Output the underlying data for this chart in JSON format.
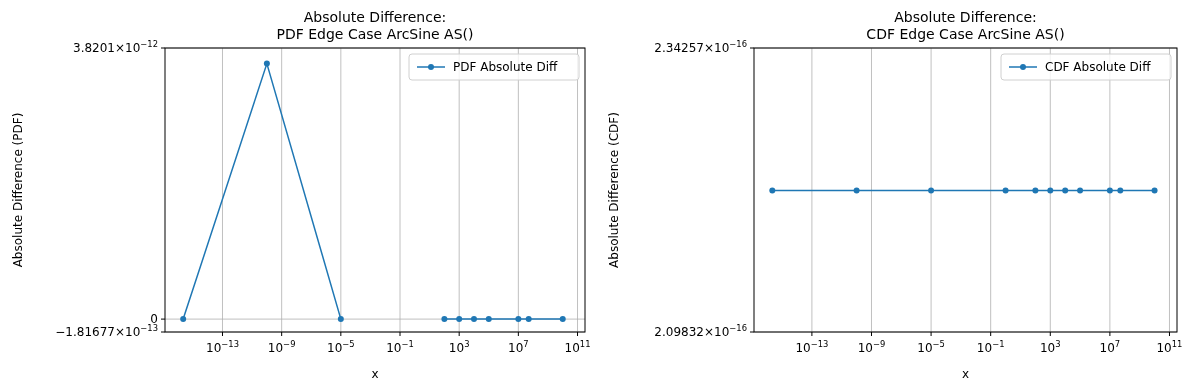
{
  "chart_data": [
    {
      "type": "line",
      "title": "Absolute Difference:\nPDF Edge Case ArcSine AS()",
      "xlabel": "x",
      "ylabel": "Absolute Difference (PDF)",
      "log": "x",
      "grid": true,
      "legend": "top right",
      "marker": "circle",
      "line_style": "solid",
      "x": [
        2.2e-16,
        1e-10,
        1e-05,
        1,
        100,
        1000,
        10000,
        100000,
        10000000,
        50000000,
        10000000000
      ],
      "xlim": [
        1.3e-17,
        320000000000.0
      ],
      "xticks": [
        {
          "value": 1e-13,
          "label": "10$^{−13}$"
        },
        {
          "value": 1e-09,
          "label": "10$^{−9}$"
        },
        {
          "value": 1e-05,
          "label": "10$^{−5}$"
        },
        {
          "value": 0.1,
          "label": "10$^{−1}$"
        },
        {
          "value": 1000,
          "label": "10$^{3}$"
        },
        {
          "value": 10000000,
          "label": "10$^{7}$"
        },
        {
          "value": 100000000000,
          "label": "10$^{11}$"
        }
      ],
      "ylim": [
        -1.81677e-13,
        3.8201e-12
      ],
      "yticks": [
        {
          "value": -1.81677e-13,
          "label": "−1.81677×10$^{−13}$"
        },
        0,
        {
          "value": 3.8201e-12,
          "label": "3.8201×10$^{−12}$"
        }
      ],
      "series": [
        {
          "name": "PDF Absolute Diff",
          "color": "#1f77b4",
          "values": [
            0,
            3.6e-12,
            0,
            null,
            0,
            0,
            0,
            0,
            0,
            0,
            0
          ]
        }
      ]
    },
    {
      "type": "line",
      "title": "Absolute Difference:\nCDF Edge Case ArcSine AS()",
      "xlabel": "x",
      "ylabel": "Absolute Difference (CDF)",
      "log": "x",
      "grid": true,
      "legend": "top right",
      "marker": "circle",
      "line_style": "solid",
      "x": [
        2.2e-16,
        1e-10,
        1e-05,
        1,
        100,
        1000,
        10000,
        100000,
        10000000,
        50000000,
        10000000000
      ],
      "xlim": [
        1.3e-17,
        320000000000.0
      ],
      "xticks": [
        {
          "value": 1e-13,
          "label": "10$^{−13}$"
        },
        {
          "value": 1e-09,
          "label": "10$^{−9}$"
        },
        {
          "value": 1e-05,
          "label": "10$^{−5}$"
        },
        {
          "value": 0.1,
          "label": "10$^{−1}$"
        },
        {
          "value": 1000,
          "label": "10$^{3}$"
        },
        {
          "value": 10000000,
          "label": "10$^{7}$"
        },
        {
          "value": 100000000000,
          "label": "10$^{11}$"
        }
      ],
      "ylim": [
        2.09832e-16,
        2.34257e-16
      ],
      "yticks": [
        {
          "value": 2.09832e-16,
          "label": "2.09832×10$^{−16}$"
        },
        {
          "value": 2.34257e-16,
          "label": "2.34257×10$^{−16}$"
        }
      ],
      "series": [
        {
          "name": "CDF Absolute Diff",
          "color": "#1f77b4",
          "values": [
            2.22e-16,
            2.22e-16,
            2.22e-16,
            2.22e-16,
            2.22e-16,
            2.22e-16,
            2.22e-16,
            2.22e-16,
            2.22e-16,
            2.22e-16,
            2.22e-16
          ]
        }
      ]
    }
  ]
}
